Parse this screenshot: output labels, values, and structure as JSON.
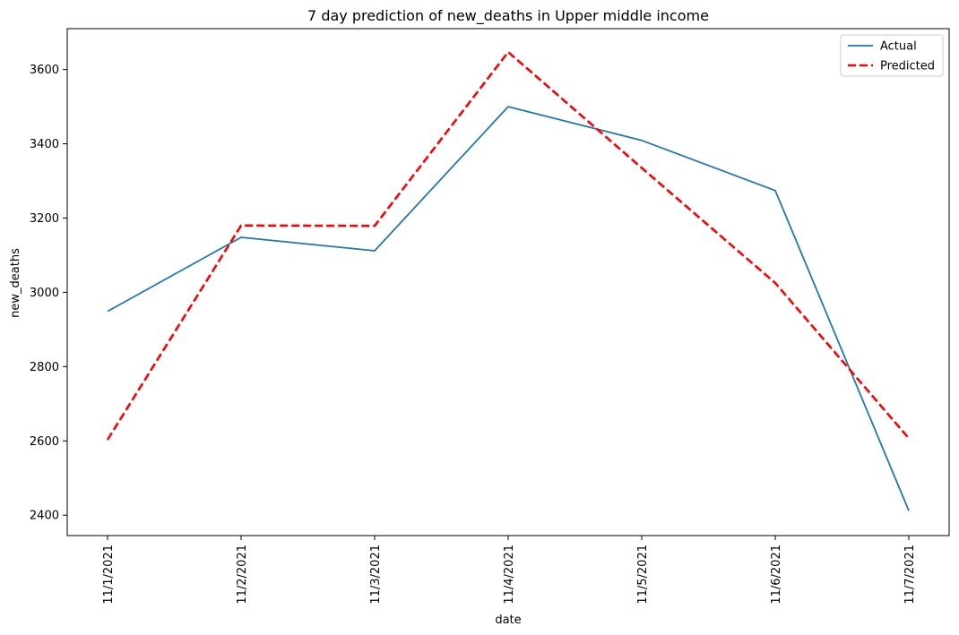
{
  "chart_data": {
    "type": "line",
    "title": "7 day prediction of new_deaths in Upper middle income",
    "xlabel": "date",
    "ylabel": "new_deaths",
    "x": [
      "11/1/2021",
      "11/2/2021",
      "11/3/2021",
      "11/4/2021",
      "11/5/2021",
      "11/6/2021",
      "11/7/2021"
    ],
    "ylim": [
      2345,
      3710
    ],
    "yticks": [
      2400,
      2600,
      2800,
      3000,
      3200,
      3400,
      3600
    ],
    "grid": false,
    "legend_position": "top-right",
    "series": [
      {
        "name": "Actual",
        "values": [
          2949,
          3148,
          3112,
          3500,
          3409,
          3274,
          2412
        ],
        "color": "#1f77b4",
        "style": "solid"
      },
      {
        "name": "Predicted",
        "values": [
          2603,
          3180,
          3179,
          3647,
          3335,
          3025,
          2607
        ],
        "color": "#ff0000",
        "style": "dashed"
      }
    ]
  }
}
